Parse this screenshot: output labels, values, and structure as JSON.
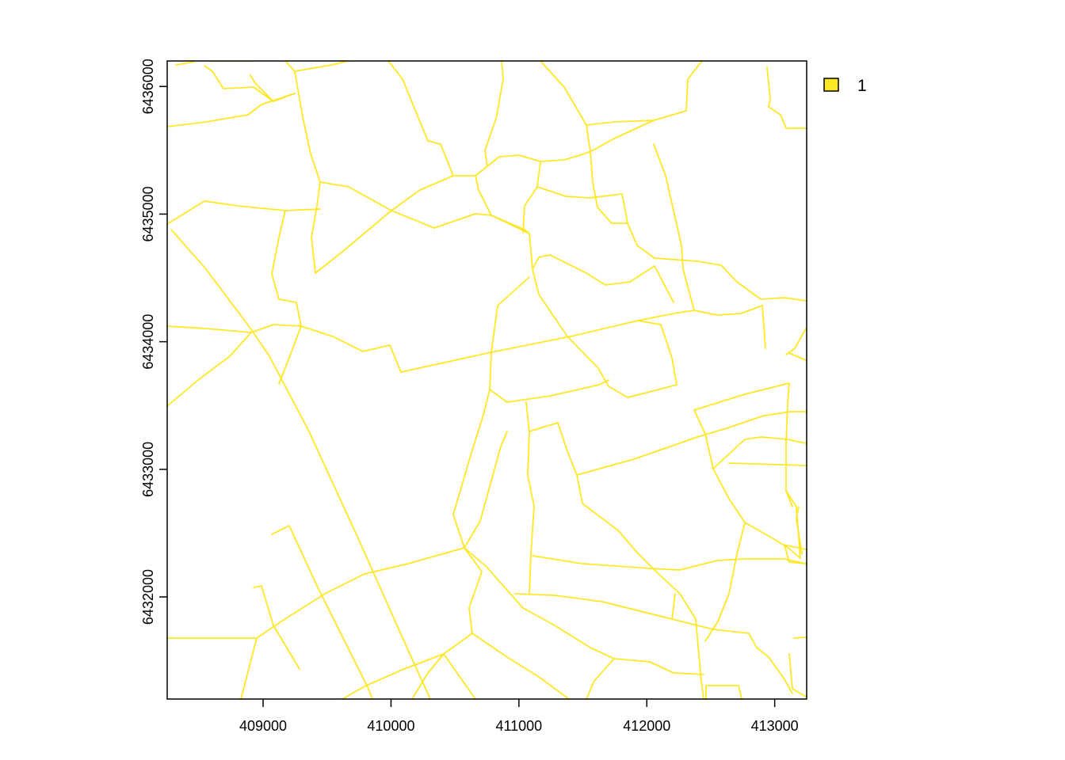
{
  "map": {
    "raster_value": 1,
    "line_color": "#FDE725",
    "x_axis": {
      "range": [
        408250,
        413250
      ],
      "ticks": [
        {
          "value": 409000,
          "label": "409000"
        },
        {
          "value": 410000,
          "label": "410000"
        },
        {
          "value": 411000,
          "label": "411000"
        },
        {
          "value": 412000,
          "label": "412000"
        },
        {
          "value": 413000,
          "label": "413000"
        }
      ]
    },
    "y_axis": {
      "range": [
        6431200,
        6436200
      ],
      "ticks": [
        {
          "value": 6432000,
          "label": "6432000"
        },
        {
          "value": 6433000,
          "label": "6433000"
        },
        {
          "value": 6434000,
          "label": "6434000"
        },
        {
          "value": 6435000,
          "label": "6435000"
        },
        {
          "value": 6436000,
          "label": "6436000"
        }
      ]
    }
  },
  "legend": {
    "placement": "top-right",
    "items": [
      {
        "label": "1",
        "color": "#FDE725"
      }
    ]
  }
}
